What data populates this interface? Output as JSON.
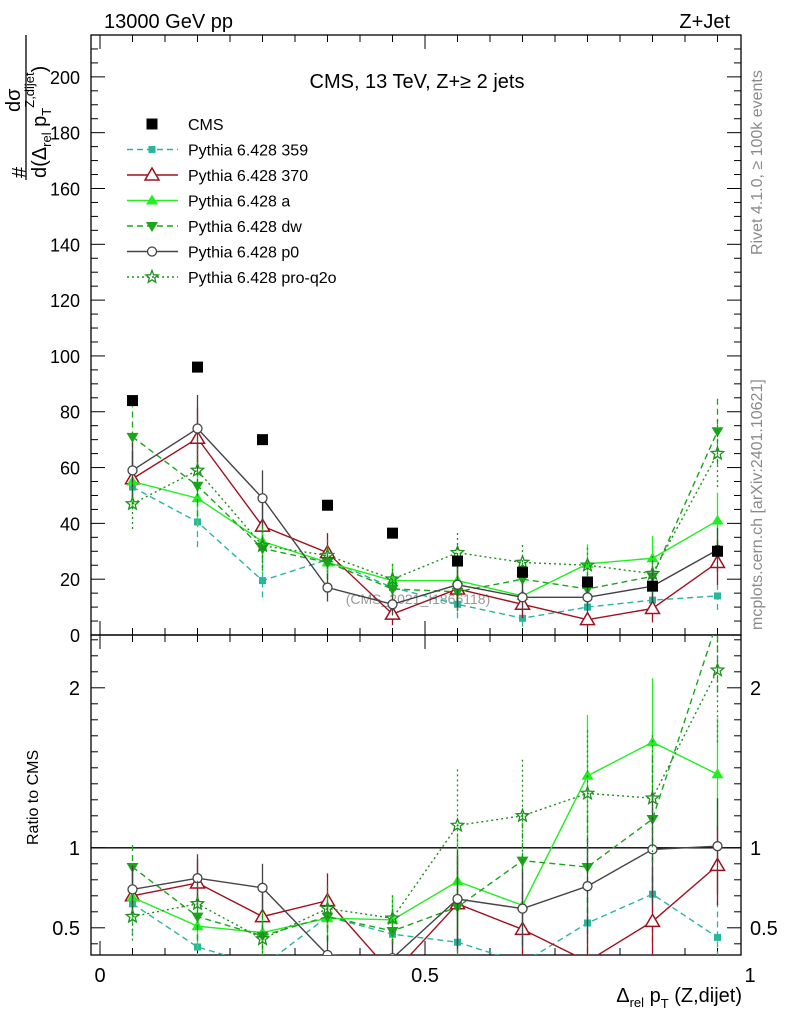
{
  "header": {
    "left_title": "13000 GeV pp",
    "right_title": "Z+Jet"
  },
  "side_labels": {
    "rivet": "Rivet 4.1.0, ≥ 100k events",
    "mcplots": "mcplots.cern.ch [arXiv:2401.10621]"
  },
  "chart_data": {
    "type": "line",
    "title": "CMS, 13 TeV, Z+≥ 2 jets",
    "ylabel": "# dσ / d(Δrel pT Z,dijet)",
    "ylabel_parts": {
      "numerator_hash": "#",
      "numerator_sigma": "dσ",
      "denom_prefix": "d(Δ",
      "denom_rel": "rel",
      "denom_p": " p",
      "denom_T": "T",
      "denom_sup": "Z,dijet",
      "denom_close": ")"
    },
    "xlabel_parts": {
      "delta": "Δ",
      "rel": "rel",
      "p": " p",
      "T": "T",
      "rest": " (Z,dijet)"
    },
    "watermark": "(CMS_2021_I1866118)",
    "xlim": [
      0,
      1
    ],
    "ylim": [
      0,
      215
    ],
    "ratio_ylabel": "Ratio to CMS",
    "ratio_ylim": [
      0.33,
      2.33
    ],
    "x_ticks": [
      0,
      0.5,
      1
    ],
    "x_tick_labels": [
      "0",
      "0.5",
      "1"
    ],
    "y_ticks": [
      20,
      40,
      60,
      80,
      100,
      120,
      140,
      160,
      180,
      200
    ],
    "y_tick_labels": [
      "20",
      "40",
      "60",
      "80",
      "100",
      "120",
      "140",
      "160",
      "180",
      "200"
    ],
    "y_zero_label": "0",
    "ratio_ticks": [
      0.5,
      1,
      2
    ],
    "ratio_tick_labels": [
      "0.5",
      "1",
      "2"
    ],
    "x": [
      0.05,
      0.15,
      0.25,
      0.35,
      0.45,
      0.55,
      0.65,
      0.75,
      0.85,
      0.95
    ],
    "series": [
      {
        "name": "CMS",
        "values": [
          84,
          96,
          70,
          46.5,
          36.5,
          26.5,
          22.5,
          19,
          17.5,
          30
        ],
        "color": "#000000",
        "marker": "square",
        "dash": "none",
        "line": false,
        "err": [
          1.2,
          1.2,
          1.2,
          1.0,
          1.0,
          1.0,
          1.0,
          1.0,
          1.0,
          1.5
        ]
      },
      {
        "name": "Pythia 6.428 359",
        "values": [
          53,
          40.5,
          19.5,
          27,
          17,
          11,
          6,
          10,
          12.5,
          14
        ],
        "color": "#2ab59d",
        "marker": "smallsquare",
        "dash": "6,4",
        "line": true,
        "err": [
          8,
          9,
          6,
          5,
          5,
          5,
          3,
          4,
          5,
          5
        ]
      },
      {
        "name": "Pythia 6.428 370",
        "values": [
          56,
          70.5,
          39,
          29.5,
          7.5,
          16.5,
          11,
          5.5,
          9.5,
          26
        ],
        "color": "#a01020",
        "marker": "opentriangle",
        "dash": "none",
        "line": true,
        "err": [
          10,
          11,
          10,
          7,
          4,
          8,
          5,
          3,
          5,
          8
        ]
      },
      {
        "name": "Pythia 6.428 a",
        "values": [
          55,
          49,
          33.5,
          26,
          19.5,
          19.5,
          14,
          25.5,
          27.5,
          41
        ],
        "color": "#22ee22",
        "marker": "triangle",
        "dash": "none",
        "line": true,
        "err": [
          9,
          10,
          8,
          6,
          6,
          7,
          5,
          7,
          8,
          10
        ]
      },
      {
        "name": "Pythia 6.428 dw",
        "values": [
          71,
          53.5,
          31,
          26,
          16.5,
          15.5,
          20,
          16.5,
          21,
          73
        ],
        "color": "#1aa51a",
        "marker": "downtriangle",
        "dash": "6,4",
        "line": true,
        "err": [
          11,
          11,
          8,
          6,
          6,
          7,
          6,
          6,
          7,
          12
        ]
      },
      {
        "name": "Pythia 6.428 p0",
        "values": [
          59,
          74,
          49,
          17,
          11,
          18,
          13.5,
          13.5,
          17.5,
          30.5
        ],
        "color": "#444444",
        "marker": "opencircle",
        "dash": "none",
        "line": true,
        "err": [
          10,
          12,
          10,
          5,
          4,
          8,
          5,
          5,
          6,
          8
        ]
      },
      {
        "name": "Pythia 6.428 pro-q2o",
        "values": [
          47,
          59,
          32,
          28.5,
          20,
          29.5,
          26,
          25,
          22,
          65
        ],
        "color": "#1f8f1f",
        "marker": "star",
        "dash": "2,3",
        "line": true,
        "err": [
          9,
          11,
          8,
          6,
          6,
          8,
          7,
          7,
          7,
          12
        ]
      }
    ],
    "ratio": {
      "Pythia 6.428 359": [
        0.65,
        0.38,
        0.26,
        0.57,
        0.46,
        0.41,
        0.28,
        0.53,
        0.71,
        0.44
      ],
      "Pythia 6.428 370": [
        0.7,
        0.78,
        0.57,
        0.67,
        0.21,
        0.65,
        0.49,
        0.29,
        0.54,
        0.89
      ],
      "Pythia 6.428 a": [
        0.69,
        0.51,
        0.47,
        0.56,
        0.55,
        0.79,
        0.64,
        1.45,
        1.66,
        1.46
      ],
      "Pythia 6.428 dw": [
        0.88,
        0.57,
        0.45,
        0.57,
        0.48,
        0.63,
        0.92,
        0.88,
        1.18,
        2.42
      ],
      "Pythia 6.428 p0": [
        0.74,
        0.81,
        0.75,
        0.33,
        0.31,
        0.68,
        0.62,
        0.76,
        0.99,
        1.01
      ],
      "Pythia 6.428 pro-q2o": [
        0.57,
        0.65,
        0.43,
        0.62,
        0.56,
        1.14,
        1.2,
        1.34,
        1.31,
        2.11
      ]
    },
    "ratio_err": {
      "Pythia 6.428 359": [
        0.2,
        0.2,
        0.15,
        0.15,
        0.15,
        0.3,
        0.2,
        0.25,
        0.3,
        0.25
      ],
      "Pythia 6.428 370": [
        0.15,
        0.15,
        0.15,
        0.17,
        0.12,
        0.3,
        0.25,
        0.2,
        0.3,
        0.25
      ],
      "Pythia 6.428 a": [
        0.15,
        0.15,
        0.15,
        0.15,
        0.15,
        0.3,
        0.25,
        0.38,
        0.4,
        0.35
      ],
      "Pythia 6.428 dw": [
        0.15,
        0.15,
        0.15,
        0.15,
        0.15,
        0.3,
        0.3,
        0.35,
        0.4,
        0.45
      ],
      "Pythia 6.428 p0": [
        0.15,
        0.15,
        0.15,
        0.12,
        0.12,
        0.3,
        0.25,
        0.3,
        0.35,
        0.3
      ],
      "Pythia 6.428 pro-q2o": [
        0.15,
        0.15,
        0.15,
        0.15,
        0.15,
        0.35,
        0.35,
        0.4,
        0.4,
        0.45
      ]
    }
  }
}
